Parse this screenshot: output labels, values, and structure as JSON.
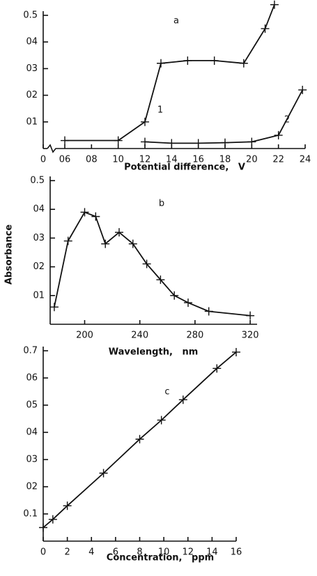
{
  "chart_data": [
    {
      "type": "line",
      "panel_label": "a",
      "x_label": "Potential difference,   V",
      "xlim": [
        0.6,
        2.4
      ],
      "ylim": [
        0,
        0.5
      ],
      "axis_break": true,
      "xticks": [
        0,
        {
          "value": 0.6,
          "label": "06"
        },
        {
          "value": 0.8,
          "label": "08"
        },
        {
          "value": 1.0,
          "label": "10"
        },
        {
          "value": 1.2,
          "label": "12"
        },
        {
          "value": 1.4,
          "label": "14"
        },
        {
          "value": 1.6,
          "label": "16"
        },
        {
          "value": 1.8,
          "label": "18"
        },
        {
          "value": 2.0,
          "label": "20"
        },
        {
          "value": 2.2,
          "label": "22"
        },
        {
          "value": 2.4,
          "label": "24"
        }
      ],
      "yticks": [
        {
          "value": 0.1,
          "label": "01"
        },
        {
          "value": 0.2,
          "label": "02"
        },
        {
          "value": 0.3,
          "label": "03"
        },
        {
          "value": 0.4,
          "label": "04"
        },
        0.5
      ],
      "series": [
        {
          "name": "1",
          "color": "#111111",
          "x": [
            0.6,
            1.0,
            1.2,
            1.32,
            1.52,
            1.72,
            1.94,
            2.1,
            2.17
          ],
          "values": [
            0.03,
            0.03,
            0.1,
            0.32,
            0.33,
            0.33,
            0.32,
            0.45,
            0.54
          ]
        },
        {
          "name": "2",
          "color": "#111111",
          "x": [
            1.2,
            1.4,
            1.6,
            1.8,
            2.0,
            2.2,
            2.38
          ],
          "values": [
            0.025,
            0.02,
            0.02,
            0.022,
            0.025,
            0.05,
            0.22
          ]
        }
      ]
    },
    {
      "type": "line",
      "panel_label": "b",
      "x_label": "Wavelength,   nm",
      "y_label": "Absorbance",
      "xlim": [
        175,
        325
      ],
      "ylim": [
        0,
        0.5
      ],
      "xticks": [
        200,
        240,
        280,
        320
      ],
      "yticks": [
        {
          "value": 0.1,
          "label": "01"
        },
        {
          "value": 0.2,
          "label": "02"
        },
        {
          "value": 0.3,
          "label": "03"
        },
        {
          "value": 0.4,
          "label": "04"
        },
        0.5
      ],
      "series": [
        {
          "color": "#111111",
          "x": [
            178,
            188,
            200,
            208,
            215,
            225,
            235,
            245,
            255,
            265,
            275,
            290,
            320
          ],
          "values": [
            0.06,
            0.29,
            0.39,
            0.375,
            0.28,
            0.32,
            0.28,
            0.21,
            0.155,
            0.1,
            0.075,
            0.045,
            0.03
          ]
        }
      ]
    },
    {
      "type": "line",
      "panel_label": "c",
      "x_label": "Concentration,   ppm",
      "xlim": [
        0,
        16
      ],
      "ylim": [
        0,
        0.7
      ],
      "xticks": [
        0,
        2,
        4,
        6,
        8,
        10,
        12,
        14,
        16
      ],
      "yticks": [
        0.1,
        {
          "value": 0.2,
          "label": "02"
        },
        {
          "value": 0.3,
          "label": "03"
        },
        {
          "value": 0.4,
          "label": "04"
        },
        {
          "value": 0.5,
          "label": "05"
        },
        {
          "value": 0.6,
          "label": "06"
        },
        0.7
      ],
      "series": [
        {
          "color": "#111111",
          "x": [
            0,
            0.8,
            2,
            5,
            8,
            9.8,
            11.6,
            14.4,
            16
          ],
          "values": [
            0.05,
            0.08,
            0.13,
            0.25,
            0.375,
            0.445,
            0.52,
            0.635,
            0.695
          ]
        }
      ]
    }
  ]
}
